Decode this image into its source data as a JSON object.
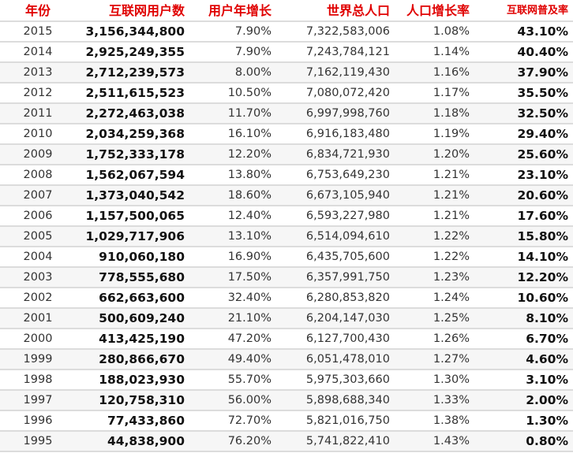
{
  "headers": [
    "年份",
    "互联网用户数",
    "用户年增长",
    "世界总人口",
    "人口增长率",
    "互联网普及率"
  ],
  "header_color": "#e00000",
  "rows": [
    [
      "2015",
      "3,156,344,800",
      "7.90%",
      "7,322,583,006",
      "1.08%",
      "43.10%"
    ],
    [
      "2014",
      "2,925,249,355",
      "7.90%",
      "7,243,784,121",
      "1.14%",
      "40.40%"
    ],
    [
      "2013",
      "2,712,239,573",
      "8.00%",
      "7,162,119,430",
      "1.16%",
      "37.90%"
    ],
    [
      "2012",
      "2,511,615,523",
      "10.50%",
      "7,080,072,420",
      "1.17%",
      "35.50%"
    ],
    [
      "2011",
      "2,272,463,038",
      "11.70%",
      "6,997,998,760",
      "1.18%",
      "32.50%"
    ],
    [
      "2010",
      "2,034,259,368",
      "16.10%",
      "6,916,183,480",
      "1.19%",
      "29.40%"
    ],
    [
      "2009",
      "1,752,333,178",
      "12.20%",
      "6,834,721,930",
      "1.20%",
      "25.60%"
    ],
    [
      "2008",
      "1,562,067,594",
      "13.80%",
      "6,753,649,230",
      "1.21%",
      "23.10%"
    ],
    [
      "2007",
      "1,373,040,542",
      "18.60%",
      "6,673,105,940",
      "1.21%",
      "20.60%"
    ],
    [
      "2006",
      "1,157,500,065",
      "12.40%",
      "6,593,227,980",
      "1.21%",
      "17.60%"
    ],
    [
      "2005",
      "1,029,717,906",
      "13.10%",
      "6,514,094,610",
      "1.22%",
      "15.80%"
    ],
    [
      "2004",
      "910,060,180",
      "16.90%",
      "6,435,705,600",
      "1.22%",
      "14.10%"
    ],
    [
      "2003",
      "778,555,680",
      "17.50%",
      "6,357,991,750",
      "1.23%",
      "12.20%"
    ],
    [
      "2002",
      "662,663,600",
      "32.40%",
      "6,280,853,820",
      "1.24%",
      "10.60%"
    ],
    [
      "2001",
      "500,609,240",
      "21.10%",
      "6,204,147,030",
      "1.25%",
      "8.10%"
    ],
    [
      "2000",
      "413,425,190",
      "47.20%",
      "6,127,700,430",
      "1.26%",
      "6.70%"
    ],
    [
      "1999",
      "280,866,670",
      "49.40%",
      "6,051,478,010",
      "1.27%",
      "4.60%"
    ],
    [
      "1998",
      "188,023,930",
      "55.70%",
      "5,975,303,660",
      "1.30%",
      "3.10%"
    ],
    [
      "1997",
      "120,758,310",
      "56.00%",
      "5,898,688,340",
      "1.33%",
      "2.00%"
    ],
    [
      "1996",
      "77,433,860",
      "72.70%",
      "5,821,016,750",
      "1.38%",
      "1.30%"
    ],
    [
      "1995",
      "44,838,900",
      "76.20%",
      "5,741,822,410",
      "1.43%",
      "0.80%"
    ]
  ]
}
